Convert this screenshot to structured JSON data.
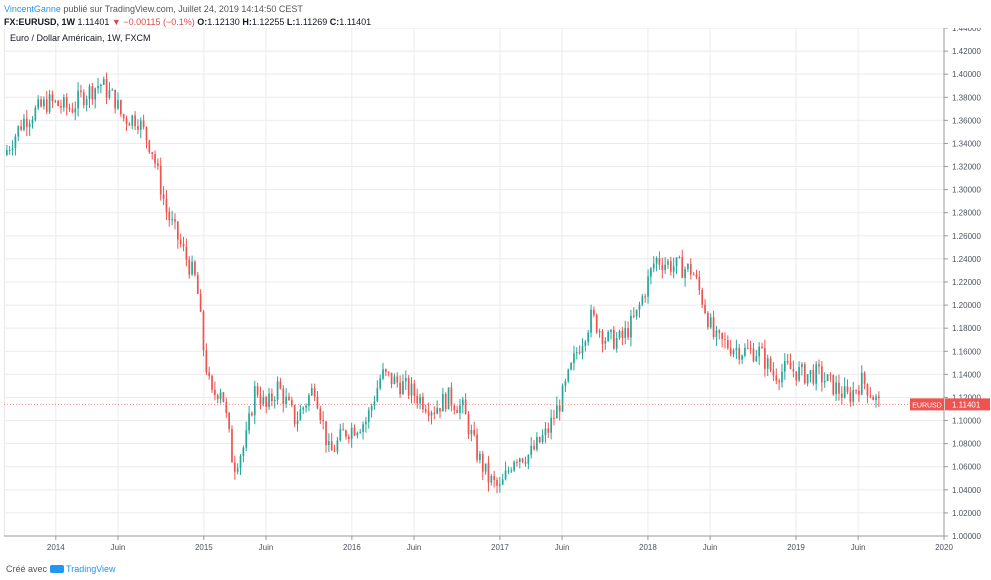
{
  "header": {
    "author": "VincentGanne",
    "publish_text": "publié sur TradingView.com, Juillet 24, 2019 14:14:50 CEST",
    "symbol": "FX:EURUSD, 1W",
    "last": "1.11401",
    "change": "−0.00115 (−0.1%)",
    "o_label": "O:",
    "o": "1.12130",
    "h_label": "H:",
    "h": "1.12255",
    "l_label": "L:",
    "l": "1.11269",
    "c_label": "C:",
    "c": "1.11401"
  },
  "footer": {
    "created_with": "Créé avec",
    "brand": "TradingView"
  },
  "colors": {
    "up": "#26a69a",
    "down": "#ef5350",
    "grid": "#ebebeb",
    "axis_text": "#4c525e",
    "price_tag": "#ef5350"
  },
  "chart_data": {
    "type": "candlestick",
    "title": "Euro / Dollar Américain, 1W, FXCM",
    "y_ticks": [
      "1.44000",
      "1.42000",
      "1.40000",
      "1.38000",
      "1.36000",
      "1.34000",
      "1.32000",
      "1.30000",
      "1.28000",
      "1.26000",
      "1.24000",
      "1.22000",
      "1.20000",
      "1.18000",
      "1.16000",
      "1.14000",
      "1.12000",
      "1.10000",
      "1.08000",
      "1.06000",
      "1.04000",
      "1.02000",
      "1.00000"
    ],
    "ylim": [
      1.0,
      1.44
    ],
    "x_ticks": [
      {
        "label": "2014",
        "t": 2014.0
      },
      {
        "label": "Juin",
        "t": 2014.42
      },
      {
        "label": "2015",
        "t": 2015.0
      },
      {
        "label": "Juin",
        "t": 2015.42
      },
      {
        "label": "2016",
        "t": 2016.0
      },
      {
        "label": "Juin",
        "t": 2016.42
      },
      {
        "label": "2017",
        "t": 2017.0
      },
      {
        "label": "Juin",
        "t": 2017.42
      },
      {
        "label": "2018",
        "t": 2018.0
      },
      {
        "label": "Juin",
        "t": 2018.42
      },
      {
        "label": "2019",
        "t": 2019.0
      },
      {
        "label": "Juin",
        "t": 2019.42
      },
      {
        "label": "2020",
        "t": 2020.0
      }
    ],
    "xlim": [
      2013.65,
      2020.0
    ],
    "last_price_label": "EURUSD",
    "last_price": 1.11401,
    "last_price_text": "1.11401",
    "path_points": [
      [
        2013.65,
        1.33
      ],
      [
        2013.78,
        1.36
      ],
      [
        2013.95,
        1.376
      ],
      [
        2014.1,
        1.37
      ],
      [
        2014.17,
        1.38
      ],
      [
        2014.3,
        1.392
      ],
      [
        2014.4,
        1.378
      ],
      [
        2014.45,
        1.362
      ],
      [
        2014.55,
        1.362
      ],
      [
        2014.65,
        1.335
      ],
      [
        2014.75,
        1.28
      ],
      [
        2014.85,
        1.25
      ],
      [
        2014.95,
        1.22
      ],
      [
        2015.0,
        1.16
      ],
      [
        2015.05,
        1.12
      ],
      [
        2015.12,
        1.13
      ],
      [
        2015.2,
        1.06
      ],
      [
        2015.28,
        1.08
      ],
      [
        2015.35,
        1.13
      ],
      [
        2015.42,
        1.11
      ],
      [
        2015.5,
        1.13
      ],
      [
        2015.62,
        1.1
      ],
      [
        2015.75,
        1.13
      ],
      [
        2015.85,
        1.07
      ],
      [
        2015.95,
        1.09
      ],
      [
        2016.1,
        1.1
      ],
      [
        2016.2,
        1.14
      ],
      [
        2016.35,
        1.13
      ],
      [
        2016.45,
        1.12
      ],
      [
        2016.55,
        1.11
      ],
      [
        2016.65,
        1.12
      ],
      [
        2016.75,
        1.11
      ],
      [
        2016.85,
        1.07
      ],
      [
        2016.92,
        1.05
      ],
      [
        2017.0,
        1.04
      ],
      [
        2017.1,
        1.07
      ],
      [
        2017.2,
        1.07
      ],
      [
        2017.32,
        1.09
      ],
      [
        2017.42,
        1.12
      ],
      [
        2017.52,
        1.16
      ],
      [
        2017.62,
        1.19
      ],
      [
        2017.72,
        1.17
      ],
      [
        2017.82,
        1.17
      ],
      [
        2017.92,
        1.19
      ],
      [
        2018.05,
        1.24
      ],
      [
        2018.15,
        1.235
      ],
      [
        2018.3,
        1.23
      ],
      [
        2018.38,
        1.2
      ],
      [
        2018.45,
        1.17
      ],
      [
        2018.55,
        1.165
      ],
      [
        2018.65,
        1.16
      ],
      [
        2018.75,
        1.16
      ],
      [
        2018.85,
        1.14
      ],
      [
        2018.95,
        1.145
      ],
      [
        2019.05,
        1.14
      ],
      [
        2019.15,
        1.14
      ],
      [
        2019.25,
        1.13
      ],
      [
        2019.35,
        1.12
      ],
      [
        2019.45,
        1.135
      ],
      [
        2019.56,
        1.114
      ]
    ]
  }
}
